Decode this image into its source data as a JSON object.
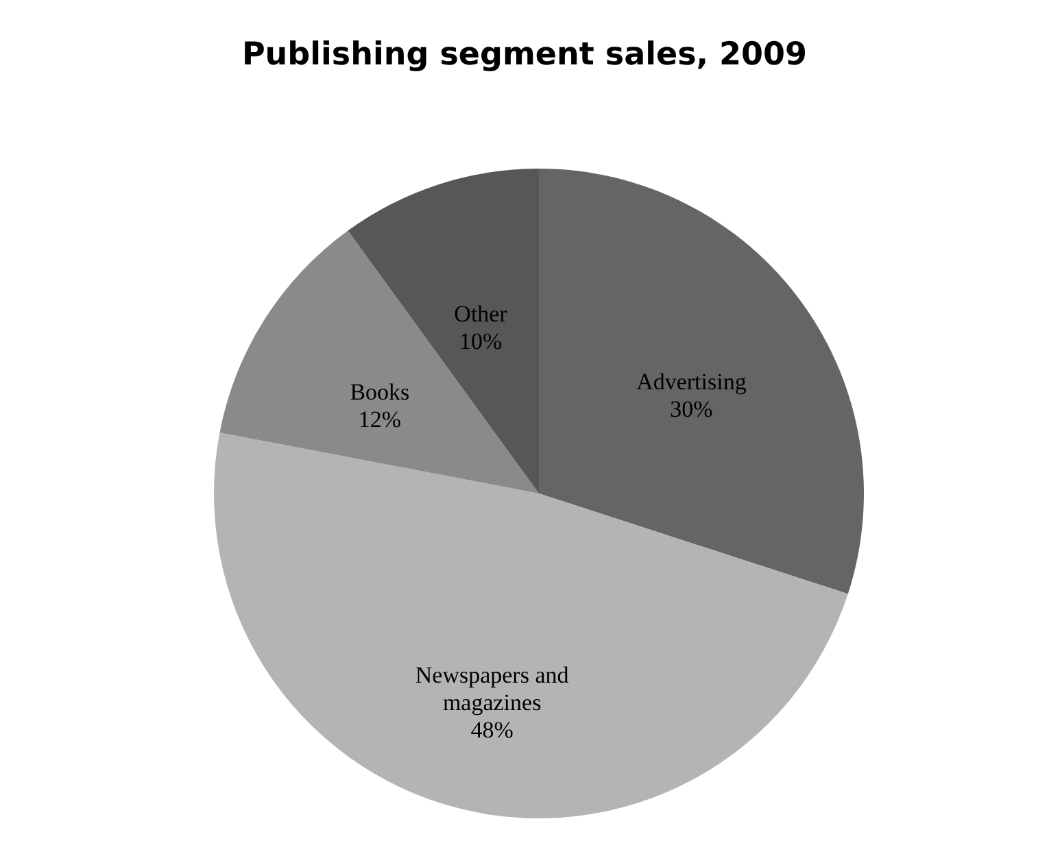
{
  "chart_data": {
    "type": "pie",
    "title": "Publishing segment sales, 2009",
    "categories": [
      "Advertising",
      "Newspapers and magazines",
      "Books",
      "Other"
    ],
    "values": [
      30,
      48,
      12,
      10
    ],
    "value_labels": [
      "30%",
      "48%",
      "12%",
      "10%"
    ],
    "colors": [
      "#656565",
      "#b4b4b4",
      "#8a8a8a",
      "#575757"
    ]
  }
}
